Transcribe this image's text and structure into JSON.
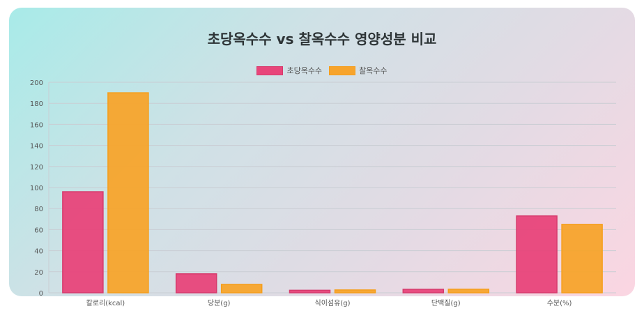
{
  "chart_data": {
    "type": "bar",
    "title": "초당옥수수 vs 찰옥수수 영양성분 비교",
    "categories": [
      "칼로리(kcal)",
      "당분(g)",
      "식이섬유(g)",
      "단백질(g)",
      "수분(%)"
    ],
    "series": [
      {
        "name": "초당옥수수",
        "values": [
          96,
          18,
          2.4,
          3.3,
          73
        ],
        "color": "#e8457a",
        "border": "#d63a6c"
      },
      {
        "name": "찰옥수수",
        "values": [
          190,
          8,
          2.7,
          3.4,
          65
        ],
        "color": "#f7a42c",
        "border": "#f59e1b"
      }
    ],
    "yticks": [
      0,
      20,
      40,
      60,
      80,
      100,
      120,
      140,
      160,
      180,
      200
    ],
    "ylim": [
      0,
      200
    ],
    "grid": true,
    "legend_position": "top"
  }
}
